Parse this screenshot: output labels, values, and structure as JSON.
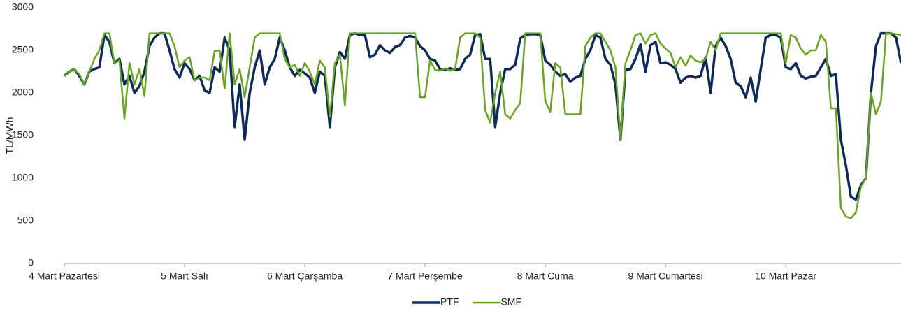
{
  "chart_data": {
    "type": "line",
    "y_label": "TL/MWh",
    "categories": [
      "4 Mart Pazartesi",
      null,
      null,
      null,
      null,
      null,
      null,
      null,
      null,
      null,
      null,
      null,
      null,
      null,
      null,
      null,
      null,
      null,
      null,
      null,
      null,
      null,
      null,
      null,
      "5 Mart Salı",
      null,
      null,
      null,
      null,
      null,
      null,
      null,
      null,
      null,
      null,
      null,
      null,
      null,
      null,
      null,
      null,
      null,
      null,
      null,
      null,
      null,
      null,
      null,
      "6 Mart Çarşamba",
      null,
      null,
      null,
      null,
      null,
      null,
      null,
      null,
      null,
      null,
      null,
      null,
      null,
      null,
      null,
      null,
      null,
      null,
      null,
      null,
      null,
      null,
      null,
      "7 Mart Perşembe",
      null,
      null,
      null,
      null,
      null,
      null,
      null,
      null,
      null,
      null,
      null,
      null,
      null,
      null,
      null,
      null,
      null,
      null,
      null,
      null,
      null,
      null,
      null,
      "8 Mart Cuma",
      null,
      null,
      null,
      null,
      null,
      null,
      null,
      null,
      null,
      null,
      null,
      null,
      null,
      null,
      null,
      null,
      null,
      null,
      null,
      null,
      null,
      null,
      null,
      "9 Mart Cumartesi",
      null,
      null,
      null,
      null,
      null,
      null,
      null,
      null,
      null,
      null,
      null,
      null,
      null,
      null,
      null,
      null,
      null,
      null,
      null,
      null,
      null,
      null,
      null,
      "10 Mart Pazar",
      null,
      null,
      null,
      null,
      null,
      null,
      null,
      null,
      null,
      null,
      null,
      null,
      null,
      null,
      null,
      null,
      null,
      null,
      null,
      null,
      null,
      null,
      null
    ],
    "series": [
      {
        "name": "PTF",
        "color": "#0c2a5b",
        "values": [
          2200,
          2250,
          2280,
          2200,
          2100,
          2250,
          2280,
          2300,
          2680,
          2600,
          2350,
          2400,
          2100,
          2200,
          2000,
          2080,
          2250,
          2550,
          2650,
          2700,
          2700,
          2500,
          2280,
          2180,
          2350,
          2280,
          2150,
          2200,
          2030,
          2000,
          2300,
          2250,
          2650,
          2500,
          1600,
          2100,
          1450,
          2000,
          2300,
          2500,
          2100,
          2300,
          2400,
          2650,
          2500,
          2300,
          2200,
          2270,
          2230,
          2180,
          2000,
          2250,
          2200,
          1600,
          2300,
          2480,
          2400,
          2680,
          2700,
          2680,
          2680,
          2420,
          2450,
          2560,
          2500,
          2470,
          2540,
          2560,
          2650,
          2670,
          2650,
          2550,
          2500,
          2400,
          2380,
          2280,
          2270,
          2290,
          2270,
          2280,
          2400,
          2450,
          2680,
          2690,
          2400,
          2400,
          1600,
          2000,
          2280,
          2280,
          2330,
          2640,
          2680,
          2690,
          2690,
          2680,
          2380,
          2330,
          2250,
          2200,
          2220,
          2130,
          2180,
          2200,
          2400,
          2500,
          2680,
          2650,
          2400,
          2330,
          2100,
          1450,
          2270,
          2280,
          2400,
          2570,
          2250,
          2560,
          2600,
          2350,
          2360,
          2330,
          2280,
          2120,
          2180,
          2200,
          2180,
          2200,
          2420,
          2000,
          2550,
          2650,
          2550,
          2400,
          2120,
          2080,
          1950,
          2180,
          1900,
          2280,
          2650,
          2680,
          2680,
          2650,
          2300,
          2280,
          2350,
          2200,
          2170,
          2190,
          2200,
          2300,
          2400,
          2200,
          2220,
          1450,
          1150,
          780,
          750,
          920,
          1000,
          2000,
          2550,
          2700,
          2700,
          2700,
          2650,
          2350
        ]
      },
      {
        "name": "SMF",
        "color": "#66a61e",
        "values": [
          2200,
          2250,
          2280,
          2220,
          2100,
          2250,
          2400,
          2500,
          2700,
          2700,
          2350,
          2380,
          1700,
          2350,
          2100,
          2280,
          1960,
          2700,
          2700,
          2700,
          2700,
          2700,
          2550,
          2300,
          2380,
          2420,
          2150,
          2180,
          2180,
          2150,
          2490,
          2500,
          2050,
          2700,
          2100,
          2280,
          1950,
          2300,
          2650,
          2700,
          2700,
          2700,
          2700,
          2700,
          2400,
          2300,
          2330,
          2200,
          2350,
          2250,
          2100,
          2380,
          2300,
          1720,
          2350,
          2450,
          1850,
          2700,
          2700,
          2700,
          2700,
          2700,
          2700,
          2700,
          2700,
          2700,
          2700,
          2700,
          2700,
          2700,
          2700,
          1950,
          1950,
          2380,
          2270,
          2260,
          2290,
          2260,
          2280,
          2650,
          2700,
          2700,
          2700,
          2650,
          1800,
          1650,
          2000,
          2250,
          1750,
          1700,
          1800,
          1880,
          2700,
          2700,
          2700,
          2700,
          1900,
          1780,
          2350,
          2300,
          1750,
          1750,
          1750,
          1750,
          2550,
          2650,
          2700,
          2700,
          2600,
          2500,
          2300,
          1450,
          2350,
          2500,
          2680,
          2700,
          2580,
          2680,
          2700,
          2580,
          2520,
          2470,
          2300,
          2420,
          2320,
          2440,
          2380,
          2360,
          2400,
          2600,
          2500,
          2700,
          2700,
          2700,
          2700,
          2700,
          2700,
          2700,
          2700,
          2700,
          2700,
          2700,
          2700,
          2700,
          2350,
          2680,
          2650,
          2520,
          2450,
          2500,
          2500,
          2680,
          2600,
          1820,
          1820,
          650,
          550,
          530,
          600,
          900,
          1000,
          2000,
          1750,
          1900,
          2700,
          2700,
          2690,
          2680
        ]
      }
    ],
    "ylim": [
      0,
      3000
    ],
    "yticks": [
      0,
      500,
      1000,
      1500,
      2000,
      2500,
      3000
    ],
    "grid": false,
    "legend": "bottom"
  }
}
